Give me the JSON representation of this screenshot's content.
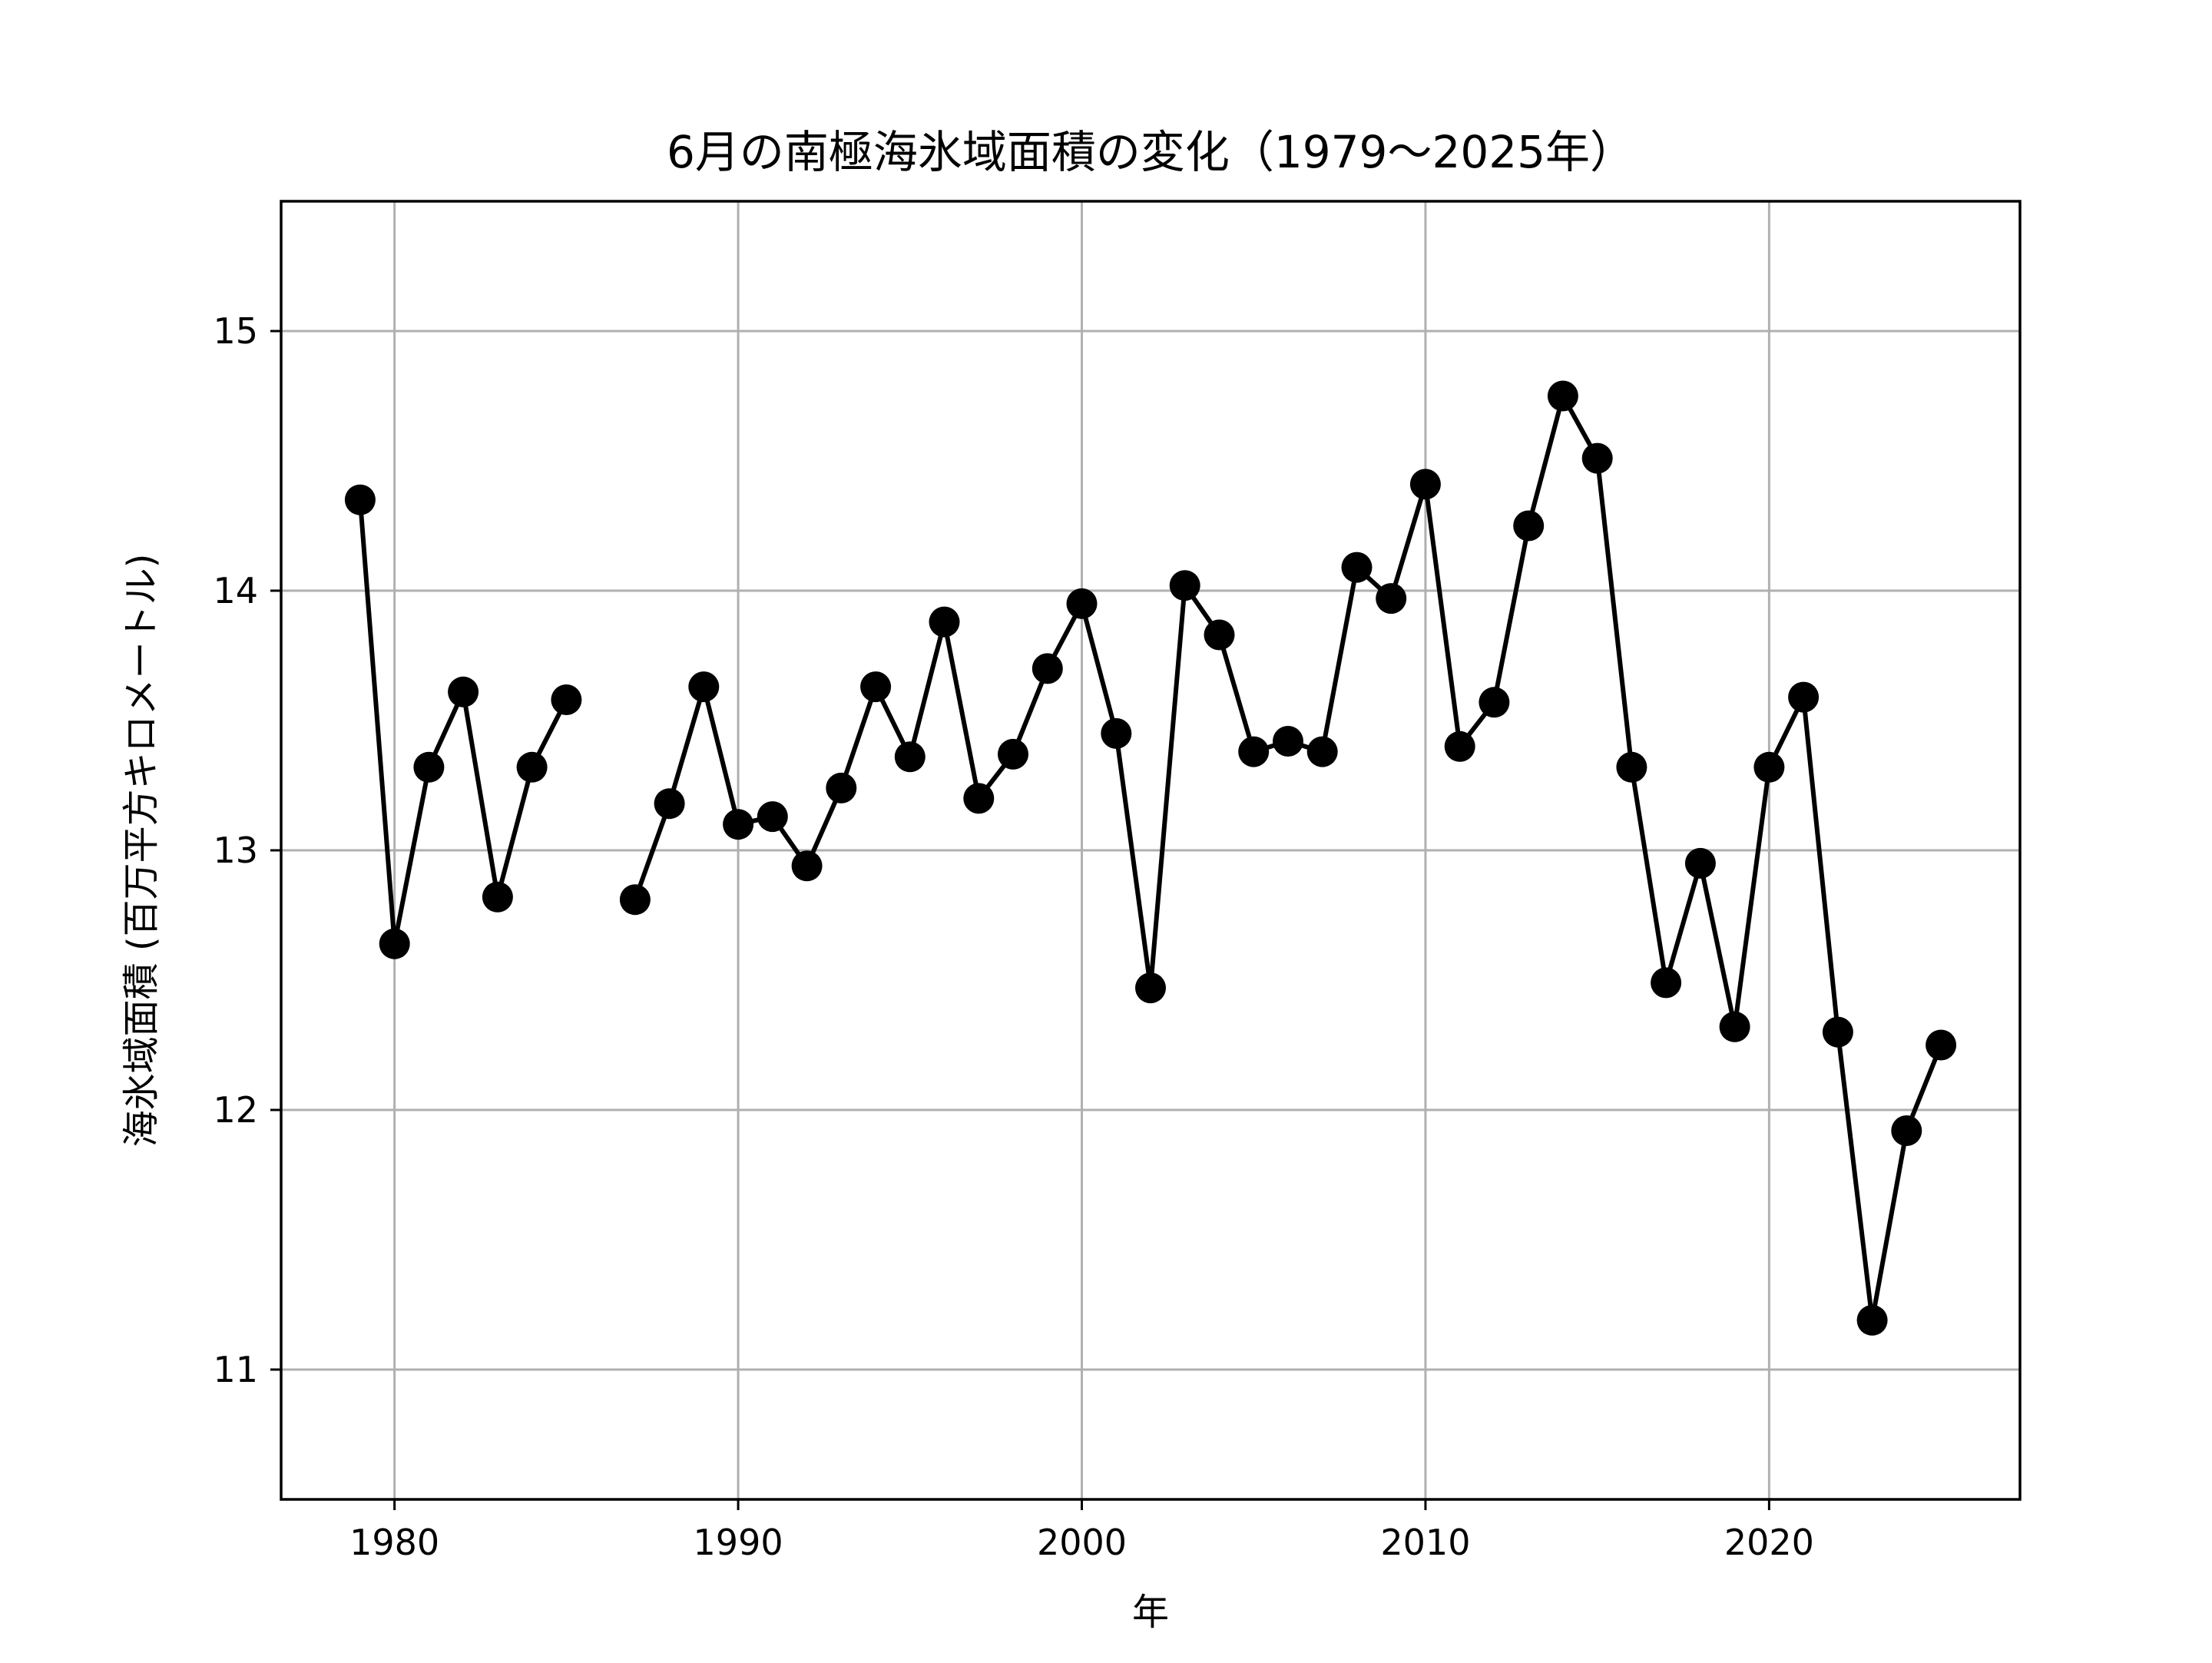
{
  "chart_data": {
    "type": "line",
    "title": "6月の南極海氷域面積の変化（1979〜2025年）",
    "xlabel": "年",
    "ylabel": "海氷域面積 (百万平方キロメートル)",
    "xlim": [
      1976.7,
      2027.3
    ],
    "ylim": [
      10.5,
      15.5
    ],
    "xticks": [
      1980,
      1990,
      2000,
      2010,
      2020
    ],
    "yticks": [
      11,
      12,
      13,
      14,
      15
    ],
    "grid": true,
    "legend": "none",
    "colors": {
      "line": "#000000",
      "marker": "#000000",
      "grid": "#b0b0b0"
    },
    "series": [
      {
        "x": [
          1979,
          1980,
          1981,
          1982,
          1983,
          1984,
          1985,
          1986,
          1987,
          1988,
          1989,
          1990,
          1991,
          1992,
          1993,
          1994,
          1995,
          1996,
          1997,
          1998,
          1999,
          2000,
          2001,
          2002,
          2003,
          2004,
          2005,
          2006,
          2007,
          2008,
          2009,
          2010,
          2011,
          2012,
          2013,
          2014,
          2015,
          2016,
          2017,
          2018,
          2019,
          2020,
          2021,
          2022,
          2023,
          2024,
          2025
        ],
        "values": [
          14.35,
          12.64,
          13.32,
          13.61,
          12.82,
          13.32,
          13.58,
          null,
          12.81,
          13.18,
          13.63,
          13.1,
          13.13,
          12.94,
          13.24,
          13.63,
          13.36,
          13.88,
          13.2,
          13.37,
          13.7,
          13.95,
          13.45,
          12.47,
          14.02,
          13.83,
          13.38,
          13.42,
          13.38,
          14.09,
          13.97,
          14.41,
          13.4,
          13.57,
          14.25,
          14.75,
          14.51,
          13.32,
          12.49,
          12.95,
          12.32,
          13.32,
          13.59,
          12.3,
          11.19,
          11.92,
          12.25
        ]
      }
    ]
  }
}
